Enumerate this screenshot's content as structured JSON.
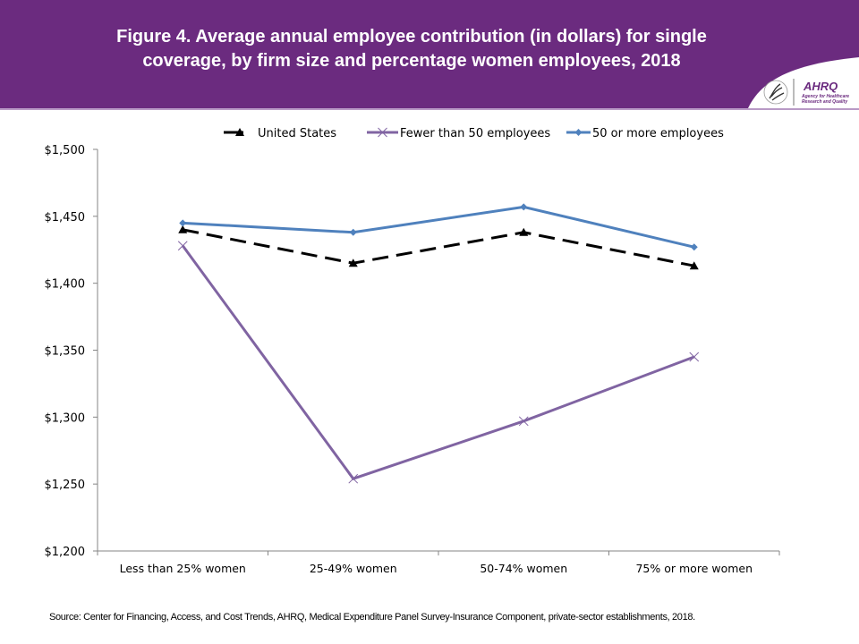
{
  "header": {
    "title_line1": "Figure 4. Average annual employee contribution (in dollars) for single",
    "title_line2": "coverage, by firm size and percentage women employees, 2018",
    "logo_name": "AHRQ",
    "logo_agency_line1": "Agency for Healthcare",
    "logo_agency_line2": "Research and Quality",
    "brand_color": "#6b2b7f"
  },
  "chart_data": {
    "type": "line",
    "title": "Figure 4. Average annual employee contribution (in dollars) for single coverage, by firm size and percentage women employees, 2018",
    "xlabel": "",
    "ylabel": "",
    "categories": [
      "Less than 25% women",
      "25-49% women",
      "50-74% women",
      "75% or more women"
    ],
    "ylim": [
      1200,
      1500
    ],
    "yticks": [
      1200,
      1250,
      1300,
      1350,
      1400,
      1450,
      1500
    ],
    "ytick_labels": [
      "$1,200",
      "$1,250",
      "$1,300",
      "$1,350",
      "$1,400",
      "$1,450",
      "$1,500"
    ],
    "grid": false,
    "legend_position": "top",
    "series": [
      {
        "name": "United States",
        "values": [
          1440,
          1415,
          1438,
          1413
        ],
        "color": "#000000",
        "dash": true,
        "marker": "triangle"
      },
      {
        "name": "Fewer than 50 employees",
        "values": [
          1428,
          1254,
          1297,
          1345
        ],
        "color": "#8064a2",
        "dash": false,
        "marker": "x"
      },
      {
        "name": "50 or more employees",
        "values": [
          1445,
          1438,
          1457,
          1427
        ],
        "color": "#4f81bd",
        "dash": false,
        "marker": "diamond"
      }
    ]
  },
  "footer": {
    "source": "Source: Center for Financing, Access, and Cost Trends, AHRQ, Medical Expenditure Panel Survey-Insurance Component, private-sector establishments, 2018."
  }
}
